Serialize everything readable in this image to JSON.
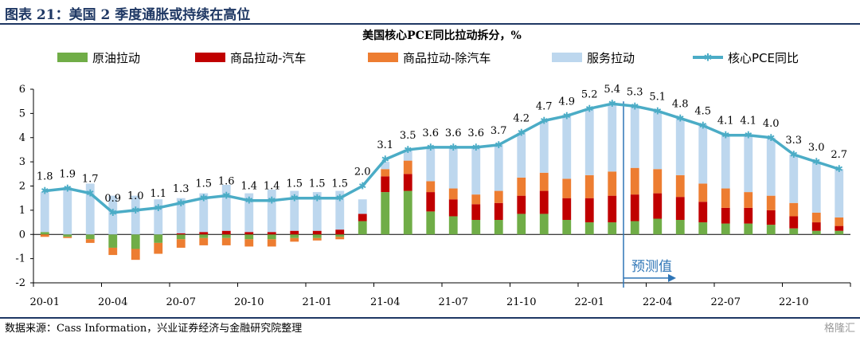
{
  "header": {
    "figure_title": "图表 21：美国 2 季度通胀或持续在高位"
  },
  "footer": {
    "source": "数据来源：Cass Information，兴业证券经济与金融研究院整理",
    "watermark": "格隆汇"
  },
  "chart_data": {
    "type": "bar",
    "title": "美国核心PCE同比拉动拆分，%",
    "ylim": [
      -2,
      6
    ],
    "yticks": [
      -2,
      -1,
      0,
      1,
      2,
      3,
      4,
      5,
      6
    ],
    "grid": false,
    "legend_position": "top",
    "categories": [
      "20-01",
      "20-02",
      "20-03",
      "20-04",
      "20-05",
      "20-06",
      "20-07",
      "20-08",
      "20-09",
      "20-10",
      "20-11",
      "20-12",
      "21-01",
      "21-02",
      "21-03",
      "21-04",
      "21-05",
      "21-06",
      "21-07",
      "21-08",
      "21-09",
      "21-10",
      "21-11",
      "21-12",
      "22-01",
      "22-02",
      "22-03",
      "22-04",
      "22-05",
      "22-06",
      "22-07",
      "22-08",
      "22-09",
      "22-10",
      "22-11",
      "22-12"
    ],
    "x_tick_labels": [
      "20-01",
      "20-04",
      "20-07",
      "20-10",
      "21-01",
      "21-04",
      "21-07",
      "21-10",
      "22-01",
      "22-04",
      "22-07",
      "22-10"
    ],
    "x_tick_every": 3,
    "series": [
      {
        "name": "原油拉动",
        "kind": "bar",
        "color": "#70ad47",
        "values": [
          0.1,
          -0.1,
          -0.2,
          -0.55,
          -0.6,
          -0.35,
          -0.2,
          -0.15,
          -0.15,
          -0.2,
          -0.2,
          -0.15,
          -0.15,
          -0.1,
          0.55,
          1.75,
          1.8,
          0.95,
          0.75,
          0.6,
          0.6,
          0.85,
          0.85,
          0.6,
          0.5,
          0.5,
          0.55,
          0.65,
          0.6,
          0.5,
          0.45,
          0.45,
          0.4,
          0.25,
          0.15,
          0.15
        ]
      },
      {
        "name": "商品拉动-汽车",
        "kind": "bar",
        "color": "#c00000",
        "values": [
          0,
          0,
          0,
          0,
          0,
          0,
          0.05,
          0.1,
          0.15,
          0.1,
          0.1,
          0.15,
          0.15,
          0.2,
          0.3,
          0.65,
          0.7,
          0.8,
          0.7,
          0.65,
          0.7,
          0.75,
          0.95,
          0.9,
          1.0,
          1.1,
          1.1,
          1.05,
          0.95,
          0.85,
          0.65,
          0.65,
          0.6,
          0.5,
          0.35,
          0.2
        ]
      },
      {
        "name": "商品拉动-除汽车",
        "kind": "bar",
        "color": "#ed7d31",
        "values": [
          -0.1,
          -0.05,
          -0.15,
          -0.3,
          -0.45,
          -0.45,
          -0.35,
          -0.3,
          -0.3,
          -0.3,
          -0.3,
          -0.15,
          -0.1,
          -0.1,
          0,
          0.3,
          0.55,
          0.45,
          0.45,
          0.4,
          0.5,
          0.75,
          0.75,
          0.8,
          0.95,
          1.0,
          1.1,
          1.0,
          0.9,
          0.75,
          0.8,
          0.65,
          0.6,
          0.55,
          0.4,
          0.35
        ]
      },
      {
        "name": "服务拉动",
        "kind": "bar",
        "color": "#bdd7ee",
        "values": [
          1.65,
          1.95,
          2.1,
          1.6,
          1.6,
          1.45,
          1.45,
          1.6,
          1.9,
          1.6,
          1.75,
          1.65,
          1.6,
          1.6,
          0.6,
          0.3,
          0.45,
          1.4,
          1.7,
          1.95,
          1.9,
          1.85,
          2.15,
          2.65,
          2.75,
          2.8,
          2.55,
          2.4,
          2.35,
          2.45,
          2.25,
          2.3,
          2.4,
          2.0,
          2.1,
          2.0
        ]
      },
      {
        "name": "核心PCE同比",
        "kind": "line",
        "color": "#4bacc6",
        "values": [
          1.8,
          1.9,
          1.7,
          0.9,
          1.0,
          1.1,
          1.3,
          1.5,
          1.6,
          1.4,
          1.4,
          1.5,
          1.5,
          1.5,
          2.0,
          3.1,
          3.5,
          3.6,
          3.6,
          3.6,
          3.7,
          4.2,
          4.7,
          4.9,
          5.2,
          5.4,
          5.3,
          5.1,
          4.8,
          4.5,
          4.1,
          4.1,
          4.0,
          3.3,
          3.0,
          2.7
        ],
        "labels": [
          "1.8",
          "1.9",
          "1.7",
          "0.9",
          "1.0",
          "1.1",
          "1.3",
          "1.5",
          "1.6",
          "1.4",
          "1.4",
          "1.5",
          "1.5",
          "1.5",
          "2.0",
          "3.1",
          "3.5",
          "3.6",
          "3.6",
          "3.6",
          "3.7",
          "4.2",
          "4.7",
          "4.9",
          "5.2",
          "5.4",
          "5.3",
          "5.1",
          "4.8",
          "4.5",
          "4.1",
          "4.1",
          "4.0",
          "3.3",
          "3.0",
          "2.7"
        ]
      }
    ],
    "annotations": [
      {
        "text": "预测值",
        "after_category": "22-02"
      }
    ]
  }
}
